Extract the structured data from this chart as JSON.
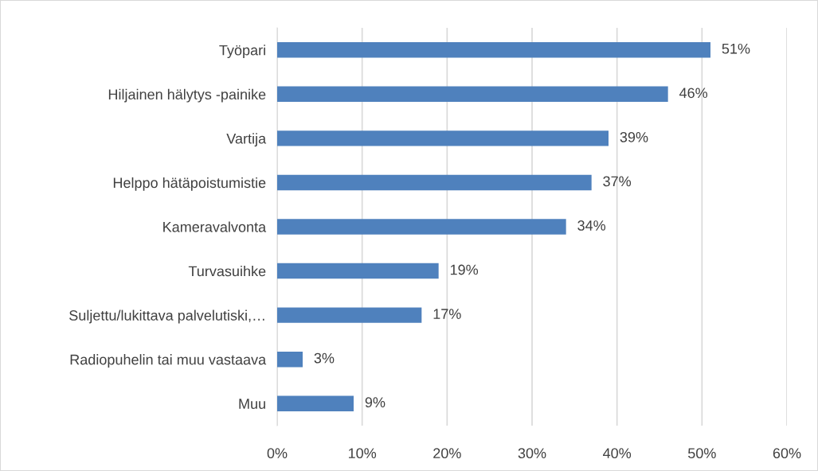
{
  "chart_data": {
    "type": "bar",
    "orientation": "horizontal",
    "categories": [
      "Työpari",
      "Hiljainen hälytys -painike",
      "Vartija",
      "Helppo hätäpoistumistie",
      "Kameravalvonta",
      "Turvasuihke",
      "Suljettu/lukittava palvelutiski,…",
      "Radiopuhelin tai muu vastaava",
      "Muu"
    ],
    "values": [
      51,
      46,
      39,
      37,
      34,
      19,
      17,
      3,
      9
    ],
    "value_labels": [
      "51%",
      "46%",
      "39%",
      "37%",
      "34%",
      "19%",
      "17%",
      "3%",
      "9%"
    ],
    "color": "#4f81bd",
    "xlim": [
      0,
      60
    ],
    "xticks": [
      {
        "value": 0,
        "label": "0%"
      },
      {
        "value": 10,
        "label": "10%"
      },
      {
        "value": 20,
        "label": "20%"
      },
      {
        "value": 30,
        "label": "30%"
      },
      {
        "value": 40,
        "label": "40%"
      },
      {
        "value": 50,
        "label": "50%"
      },
      {
        "value": 60,
        "label": "60%"
      }
    ],
    "grid": "x",
    "legend": false
  }
}
